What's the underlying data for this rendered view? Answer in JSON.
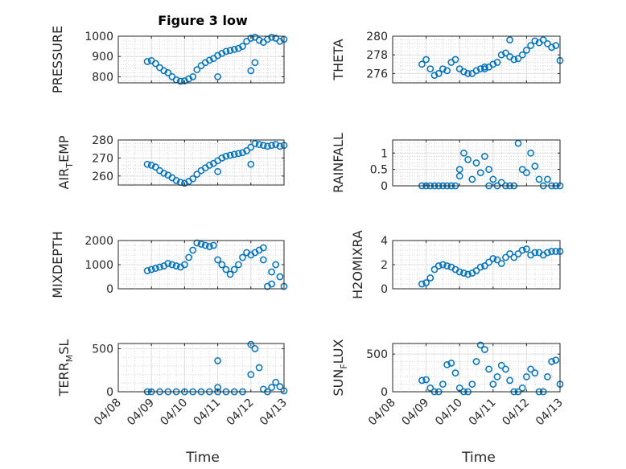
{
  "figure_title": "Figure 3 low",
  "xlabel": "Time",
  "date_ticks": [
    "04/08",
    "04/09",
    "04/10",
    "04/11",
    "04/12",
    "04/13"
  ],
  "colors": {
    "marker": "#0072bd",
    "axis": "#262626",
    "grid": "#dfdfdf"
  },
  "chart_data": [
    {
      "type": "scatter",
      "ylabel": "PRESSURE",
      "ylim": [
        770,
        1000
      ],
      "yticks": [
        800,
        900,
        1000
      ],
      "x_start": "2011-04-08T00:00",
      "x_end": "2011-04-13T00:00",
      "x": [
        "2011-04-08T21:00",
        "2011-04-09T00:00",
        "2011-04-09T03:00",
        "2011-04-09T06:00",
        "2011-04-09T09:00",
        "2011-04-09T12:00",
        "2011-04-09T15:00",
        "2011-04-09T18:00",
        "2011-04-09T21:00",
        "2011-04-10T00:00",
        "2011-04-10T03:00",
        "2011-04-10T06:00",
        "2011-04-10T09:00",
        "2011-04-10T12:00",
        "2011-04-10T15:00",
        "2011-04-10T18:00",
        "2011-04-10T21:00",
        "2011-04-11T00:00",
        "2011-04-11T03:00",
        "2011-04-11T06:00",
        "2011-04-11T09:00",
        "2011-04-11T12:00",
        "2011-04-11T15:00",
        "2011-04-11T18:00",
        "2011-04-11T21:00",
        "2011-04-12T00:00",
        "2011-04-12T03:00",
        "2011-04-12T06:00",
        "2011-04-12T09:00",
        "2011-04-12T12:00",
        "2011-04-12T15:00",
        "2011-04-12T18:00",
        "2011-04-12T21:00",
        "2011-04-13T00:00",
        "2011-04-11T00:00",
        "2011-04-12T00:00",
        "2011-04-12T03:00"
      ],
      "y": [
        875,
        880,
        865,
        845,
        830,
        820,
        800,
        785,
        778,
        780,
        790,
        800,
        835,
        855,
        870,
        882,
        890,
        905,
        915,
        925,
        930,
        935,
        940,
        950,
        975,
        990,
        995,
        980,
        970,
        985,
        995,
        990,
        975,
        985,
        800,
        830,
        870
      ]
    },
    {
      "type": "scatter",
      "ylabel": "THETA",
      "ylim": [
        275,
        280
      ],
      "yticks": [
        276,
        278,
        280
      ],
      "x_start": "2011-04-08T00:00",
      "x_end": "2011-04-13T00:00",
      "x": [
        "2011-04-08T21:00",
        "2011-04-09T00:00",
        "2011-04-09T03:00",
        "2011-04-09T06:00",
        "2011-04-09T09:00",
        "2011-04-09T12:00",
        "2011-04-09T15:00",
        "2011-04-09T18:00",
        "2011-04-09T21:00",
        "2011-04-10T00:00",
        "2011-04-10T03:00",
        "2011-04-10T06:00",
        "2011-04-10T09:00",
        "2011-04-10T12:00",
        "2011-04-10T15:00",
        "2011-04-10T18:00",
        "2011-04-10T21:00",
        "2011-04-11T00:00",
        "2011-04-11T03:00",
        "2011-04-11T06:00",
        "2011-04-11T09:00",
        "2011-04-11T12:00",
        "2011-04-11T15:00",
        "2011-04-11T18:00",
        "2011-04-11T21:00",
        "2011-04-12T00:00",
        "2011-04-12T03:00",
        "2011-04-12T06:00",
        "2011-04-12T09:00",
        "2011-04-12T12:00",
        "2011-04-12T15:00",
        "2011-04-12T18:00",
        "2011-04-12T21:00",
        "2011-04-13T00:00",
        "2011-04-10T18:00",
        "2011-04-11T12:00"
      ],
      "y": [
        277.0,
        277.5,
        276.5,
        275.8,
        276.0,
        276.5,
        276.3,
        277.2,
        277.5,
        276.5,
        276.2,
        276.0,
        276.0,
        276.3,
        276.5,
        276.7,
        276.7,
        277.0,
        277.2,
        278.0,
        278.2,
        277.8,
        277.5,
        277.6,
        278.0,
        278.5,
        279.0,
        279.5,
        279.3,
        279.6,
        279.2,
        278.8,
        279.0,
        277.4,
        276.5,
        279.6
      ]
    },
    {
      "type": "scatter",
      "ylabel": "AIR_TEMP",
      "ylim": [
        255,
        280
      ],
      "yticks": [
        260,
        270,
        280
      ],
      "x_start": "2011-04-08T00:00",
      "x_end": "2011-04-13T00:00",
      "x": [
        "2011-04-08T21:00",
        "2011-04-09T00:00",
        "2011-04-09T03:00",
        "2011-04-09T06:00",
        "2011-04-09T09:00",
        "2011-04-09T12:00",
        "2011-04-09T15:00",
        "2011-04-09T18:00",
        "2011-04-09T21:00",
        "2011-04-10T00:00",
        "2011-04-10T03:00",
        "2011-04-10T06:00",
        "2011-04-10T09:00",
        "2011-04-10T12:00",
        "2011-04-10T15:00",
        "2011-04-10T18:00",
        "2011-04-10T21:00",
        "2011-04-11T00:00",
        "2011-04-11T03:00",
        "2011-04-11T06:00",
        "2011-04-11T09:00",
        "2011-04-11T12:00",
        "2011-04-11T15:00",
        "2011-04-11T18:00",
        "2011-04-11T21:00",
        "2011-04-12T00:00",
        "2011-04-12T03:00",
        "2011-04-12T06:00",
        "2011-04-12T09:00",
        "2011-04-12T12:00",
        "2011-04-12T15:00",
        "2011-04-12T18:00",
        "2011-04-12T21:00",
        "2011-04-13T00:00",
        "2011-04-11T00:00",
        "2011-04-12T00:00"
      ],
      "y": [
        266.5,
        266.0,
        265.0,
        263.0,
        261.5,
        260.5,
        259.0,
        257.5,
        256.5,
        256.0,
        257.0,
        258.5,
        261.0,
        263.0,
        264.5,
        266.0,
        267.0,
        268.5,
        270.0,
        271.0,
        271.5,
        272.0,
        272.5,
        273.0,
        274.0,
        276.0,
        278.0,
        277.5,
        277.0,
        276.5,
        277.0,
        277.5,
        276.5,
        277.0,
        262.5,
        266.5
      ]
    },
    {
      "type": "scatter",
      "ylabel": "RAINFALL",
      "ylim": [
        0,
        1.4
      ],
      "yticks": [
        0,
        0.5,
        1
      ],
      "x_start": "2011-04-08T00:00",
      "x_end": "2011-04-13T00:00",
      "x": [
        "2011-04-08T21:00",
        "2011-04-09T00:00",
        "2011-04-09T03:00",
        "2011-04-09T06:00",
        "2011-04-09T09:00",
        "2011-04-09T12:00",
        "2011-04-09T15:00",
        "2011-04-09T18:00",
        "2011-04-09T21:00",
        "2011-04-10T00:00",
        "2011-04-10T00:00",
        "2011-04-10T03:00",
        "2011-04-10T06:00",
        "2011-04-10T09:00",
        "2011-04-10T12:00",
        "2011-04-10T15:00",
        "2011-04-10T18:00",
        "2011-04-10T21:00",
        "2011-04-10T21:00",
        "2011-04-11T00:00",
        "2011-04-11T03:00",
        "2011-04-11T06:00",
        "2011-04-11T09:00",
        "2011-04-11T12:00",
        "2011-04-11T15:00",
        "2011-04-11T18:00",
        "2011-04-11T21:00",
        "2011-04-12T00:00",
        "2011-04-12T03:00",
        "2011-04-12T06:00",
        "2011-04-12T09:00",
        "2011-04-12T12:00",
        "2011-04-12T15:00",
        "2011-04-12T18:00",
        "2011-04-12T21:00",
        "2011-04-13T00:00"
      ],
      "y": [
        0,
        0,
        0,
        0,
        0,
        0,
        0,
        0,
        0,
        0.3,
        0.5,
        1.0,
        0.8,
        0.2,
        0.7,
        0.4,
        0.9,
        0.5,
        0,
        0.2,
        0,
        0.1,
        0,
        0,
        0,
        1.3,
        0.5,
        0.4,
        1.0,
        0.6,
        0.2,
        0,
        0.2,
        0,
        0,
        0
      ]
    },
    {
      "type": "scatter",
      "ylabel": "MIXDEPTH",
      "ylim": [
        0,
        2000
      ],
      "yticks": [
        0,
        1000,
        2000
      ],
      "x_start": "2011-04-08T00:00",
      "x_end": "2011-04-13T00:00",
      "x": [
        "2011-04-08T21:00",
        "2011-04-09T00:00",
        "2011-04-09T03:00",
        "2011-04-09T06:00",
        "2011-04-09T09:00",
        "2011-04-09T12:00",
        "2011-04-09T15:00",
        "2011-04-09T18:00",
        "2011-04-09T21:00",
        "2011-04-10T00:00",
        "2011-04-10T03:00",
        "2011-04-10T06:00",
        "2011-04-10T09:00",
        "2011-04-10T12:00",
        "2011-04-10T15:00",
        "2011-04-10T18:00",
        "2011-04-10T21:00",
        "2011-04-11T00:00",
        "2011-04-11T03:00",
        "2011-04-11T06:00",
        "2011-04-11T09:00",
        "2011-04-11T12:00",
        "2011-04-11T15:00",
        "2011-04-11T18:00",
        "2011-04-11T21:00",
        "2011-04-12T00:00",
        "2011-04-12T03:00",
        "2011-04-12T06:00",
        "2011-04-12T09:00",
        "2011-04-12T12:00",
        "2011-04-12T15:00",
        "2011-04-12T18:00",
        "2011-04-12T21:00",
        "2011-04-13T00:00",
        "2011-04-12T09:00",
        "2011-04-12T15:00"
      ],
      "y": [
        750,
        800,
        850,
        900,
        950,
        1050,
        1000,
        950,
        900,
        1000,
        1300,
        1600,
        1900,
        1850,
        1800,
        1750,
        1800,
        1200,
        1000,
        800,
        600,
        800,
        1000,
        1300,
        1500,
        1400,
        1500,
        1600,
        1200,
        100,
        200,
        1000,
        500,
        100,
        1700,
        700
      ]
    },
    {
      "type": "scatter",
      "ylabel": "H2OMIXRA",
      "ylim": [
        0,
        4
      ],
      "yticks": [
        0,
        2,
        4
      ],
      "x_start": "2011-04-08T00:00",
      "x_end": "2011-04-13T00:00",
      "x": [
        "2011-04-08T21:00",
        "2011-04-09T00:00",
        "2011-04-09T03:00",
        "2011-04-09T06:00",
        "2011-04-09T09:00",
        "2011-04-09T12:00",
        "2011-04-09T15:00",
        "2011-04-09T18:00",
        "2011-04-09T21:00",
        "2011-04-10T00:00",
        "2011-04-10T03:00",
        "2011-04-10T06:00",
        "2011-04-10T09:00",
        "2011-04-10T12:00",
        "2011-04-10T15:00",
        "2011-04-10T18:00",
        "2011-04-10T21:00",
        "2011-04-11T00:00",
        "2011-04-11T03:00",
        "2011-04-11T06:00",
        "2011-04-11T09:00",
        "2011-04-11T12:00",
        "2011-04-11T15:00",
        "2011-04-11T18:00",
        "2011-04-11T21:00",
        "2011-04-12T00:00",
        "2011-04-12T03:00",
        "2011-04-12T06:00",
        "2011-04-12T09:00",
        "2011-04-12T12:00",
        "2011-04-12T15:00",
        "2011-04-12T18:00",
        "2011-04-12T21:00",
        "2011-04-13T00:00"
      ],
      "y": [
        0.4,
        0.5,
        0.9,
        1.6,
        1.9,
        2.0,
        1.9,
        1.8,
        1.6,
        1.4,
        1.3,
        1.2,
        1.3,
        1.5,
        1.8,
        1.9,
        2.2,
        2.5,
        2.4,
        2.1,
        2.6,
        2.9,
        2.6,
        2.9,
        3.2,
        3.3,
        2.8,
        3.0,
        3.0,
        2.8,
        3.0,
        3.1,
        3.1,
        3.1
      ]
    },
    {
      "type": "scatter",
      "ylabel": "TERR_MSL",
      "ylim": [
        0,
        560
      ],
      "yticks": [
        0,
        500
      ],
      "x_start": "2011-04-08T00:00",
      "x_end": "2011-04-13T00:00",
      "x": [
        "2011-04-08T21:00",
        "2011-04-09T00:00",
        "2011-04-09T06:00",
        "2011-04-09T12:00",
        "2011-04-09T18:00",
        "2011-04-10T00:00",
        "2011-04-10T06:00",
        "2011-04-10T12:00",
        "2011-04-10T18:00",
        "2011-04-11T00:00",
        "2011-04-11T00:00",
        "2011-04-11T00:00",
        "2011-04-11T06:00",
        "2011-04-11T12:00",
        "2011-04-11T18:00",
        "2011-04-12T00:00",
        "2011-04-12T00:00",
        "2011-04-12T03:00",
        "2011-04-12T06:00",
        "2011-04-12T09:00",
        "2011-04-12T12:00",
        "2011-04-12T15:00",
        "2011-04-12T18:00",
        "2011-04-12T21:00",
        "2011-04-13T00:00"
      ],
      "y": [
        0,
        0,
        0,
        0,
        0,
        0,
        0,
        0,
        0,
        0,
        360,
        50,
        0,
        0,
        0,
        200,
        550,
        500,
        280,
        30,
        0,
        50,
        110,
        60,
        10
      ]
    },
    {
      "type": "scatter",
      "ylabel": "SUN_FLUX",
      "ylim": [
        0,
        640
      ],
      "yticks": [
        0,
        500
      ],
      "x_start": "2011-04-08T00:00",
      "x_end": "2011-04-13T00:00",
      "x": [
        "2011-04-08T21:00",
        "2011-04-09T00:00",
        "2011-04-09T03:00",
        "2011-04-09T06:00",
        "2011-04-09T09:00",
        "2011-04-09T12:00",
        "2011-04-09T15:00",
        "2011-04-09T18:00",
        "2011-04-09T21:00",
        "2011-04-10T00:00",
        "2011-04-10T03:00",
        "2011-04-10T06:00",
        "2011-04-10T09:00",
        "2011-04-10T12:00",
        "2011-04-10T15:00",
        "2011-04-10T18:00",
        "2011-04-10T21:00",
        "2011-04-11T00:00",
        "2011-04-11T03:00",
        "2011-04-11T06:00",
        "2011-04-11T09:00",
        "2011-04-11T12:00",
        "2011-04-11T15:00",
        "2011-04-11T18:00",
        "2011-04-11T21:00",
        "2011-04-12T00:00",
        "2011-04-12T03:00",
        "2011-04-12T06:00",
        "2011-04-12T09:00",
        "2011-04-12T12:00",
        "2011-04-12T15:00",
        "2011-04-12T18:00",
        "2011-04-12T21:00",
        "2011-04-13T00:00"
      ],
      "y": [
        150,
        160,
        50,
        0,
        0,
        100,
        360,
        380,
        250,
        50,
        0,
        0,
        100,
        400,
        620,
        560,
        300,
        100,
        200,
        350,
        300,
        150,
        0,
        0,
        50,
        200,
        300,
        250,
        0,
        0,
        200,
        400,
        420,
        100
      ]
    }
  ]
}
